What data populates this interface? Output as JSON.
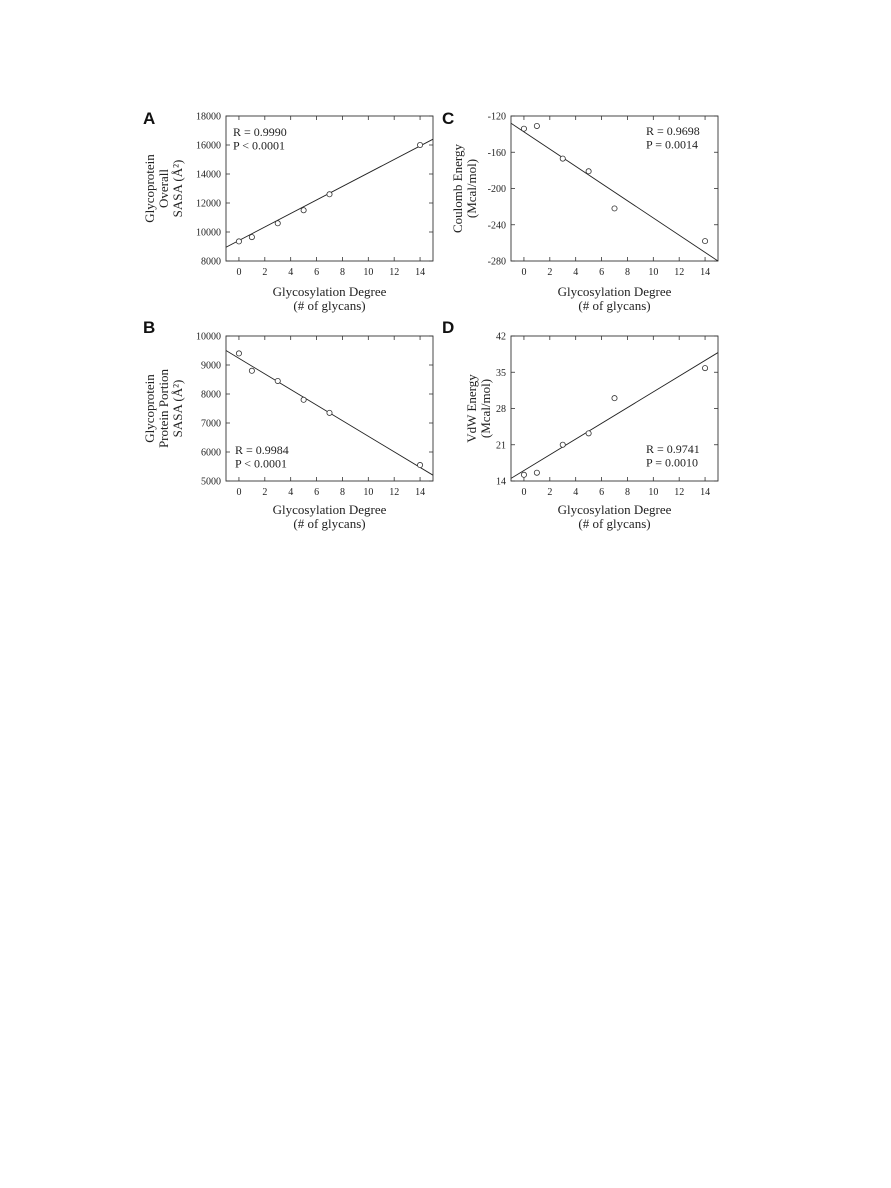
{
  "chart_data": [
    {
      "panel": "A",
      "type": "scatter",
      "xlabel": [
        "Glycosylation Degree",
        "(# of glycans)"
      ],
      "ylabel": [
        "Glycoprotein",
        "Overall",
        "SASA (Å²)"
      ],
      "xlim": [
        -1,
        15
      ],
      "ylim": [
        8000,
        18000
      ],
      "xticks": [
        0,
        2,
        4,
        6,
        8,
        10,
        12,
        14
      ],
      "yticks": [
        8000,
        10000,
        12000,
        14000,
        16000,
        18000
      ],
      "x": [
        0,
        1,
        3,
        5,
        7,
        14
      ],
      "y": [
        9350,
        9650,
        10600,
        11500,
        12600,
        16000
      ],
      "fit": {
        "x": [
          -1,
          15
        ],
        "y": [
          8950,
          16400
        ]
      },
      "stats": [
        "R = 0.9990",
        "P < 0.0001"
      ],
      "stats_position": "top-left"
    },
    {
      "panel": "B",
      "type": "scatter",
      "xlabel": [
        "Glycosylation Degree",
        "(# of glycans)"
      ],
      "ylabel": [
        "Glycoprotein",
        "Protein Portion",
        "SASA (Å²)"
      ],
      "xlim": [
        -1,
        15
      ],
      "ylim": [
        5000,
        10000
      ],
      "xticks": [
        0,
        2,
        4,
        6,
        8,
        10,
        12,
        14
      ],
      "yticks": [
        5000,
        6000,
        7000,
        8000,
        9000,
        10000
      ],
      "x": [
        0,
        1,
        3,
        5,
        7,
        14
      ],
      "y": [
        9400,
        8800,
        8450,
        7800,
        7350,
        5550
      ],
      "fit": {
        "x": [
          -1,
          15
        ],
        "y": [
          9500,
          5200
        ]
      },
      "stats": [
        "R = 0.9984",
        "P < 0.0001"
      ],
      "stats_position": "bottom-left"
    },
    {
      "panel": "C",
      "type": "scatter",
      "xlabel": [
        "Glycosylation Degree",
        "(# of glycans)"
      ],
      "ylabel": [
        "Coulomb Energy",
        "(Mcal/mol)"
      ],
      "xlim": [
        -1,
        15
      ],
      "ylim": [
        -280,
        -120
      ],
      "xticks": [
        0,
        2,
        4,
        6,
        8,
        10,
        12,
        14
      ],
      "yticks": [
        -280,
        -240,
        -200,
        -160,
        -120
      ],
      "x": [
        0,
        1,
        3,
        5,
        7,
        14
      ],
      "y": [
        -134,
        -131,
        -167,
        -181,
        -222,
        -258
      ],
      "fit": {
        "x": [
          -1,
          15
        ],
        "y": [
          -128,
          -280
        ]
      },
      "stats": [
        "R = 0.9698",
        "P = 0.0014"
      ],
      "stats_position": "top-right"
    },
    {
      "panel": "D",
      "type": "scatter",
      "xlabel": [
        "Glycosylation Degree",
        "(# of glycans)"
      ],
      "ylabel": [
        "VdW Energy",
        "(Mcal/mol)"
      ],
      "xlim": [
        -1,
        15
      ],
      "ylim": [
        14,
        42
      ],
      "xticks": [
        0,
        2,
        4,
        6,
        8,
        10,
        12,
        14
      ],
      "yticks": [
        14,
        21,
        28,
        35,
        42
      ],
      "x": [
        0,
        1,
        3,
        5,
        7,
        14
      ],
      "y": [
        15.2,
        15.6,
        21.0,
        23.2,
        30.0,
        35.8
      ],
      "fit": {
        "x": [
          -1,
          15
        ],
        "y": [
          14.5,
          38.8
        ]
      },
      "stats": [
        "R = 0.9741",
        "P = 0.0010"
      ],
      "stats_position": "bottom-right"
    }
  ]
}
